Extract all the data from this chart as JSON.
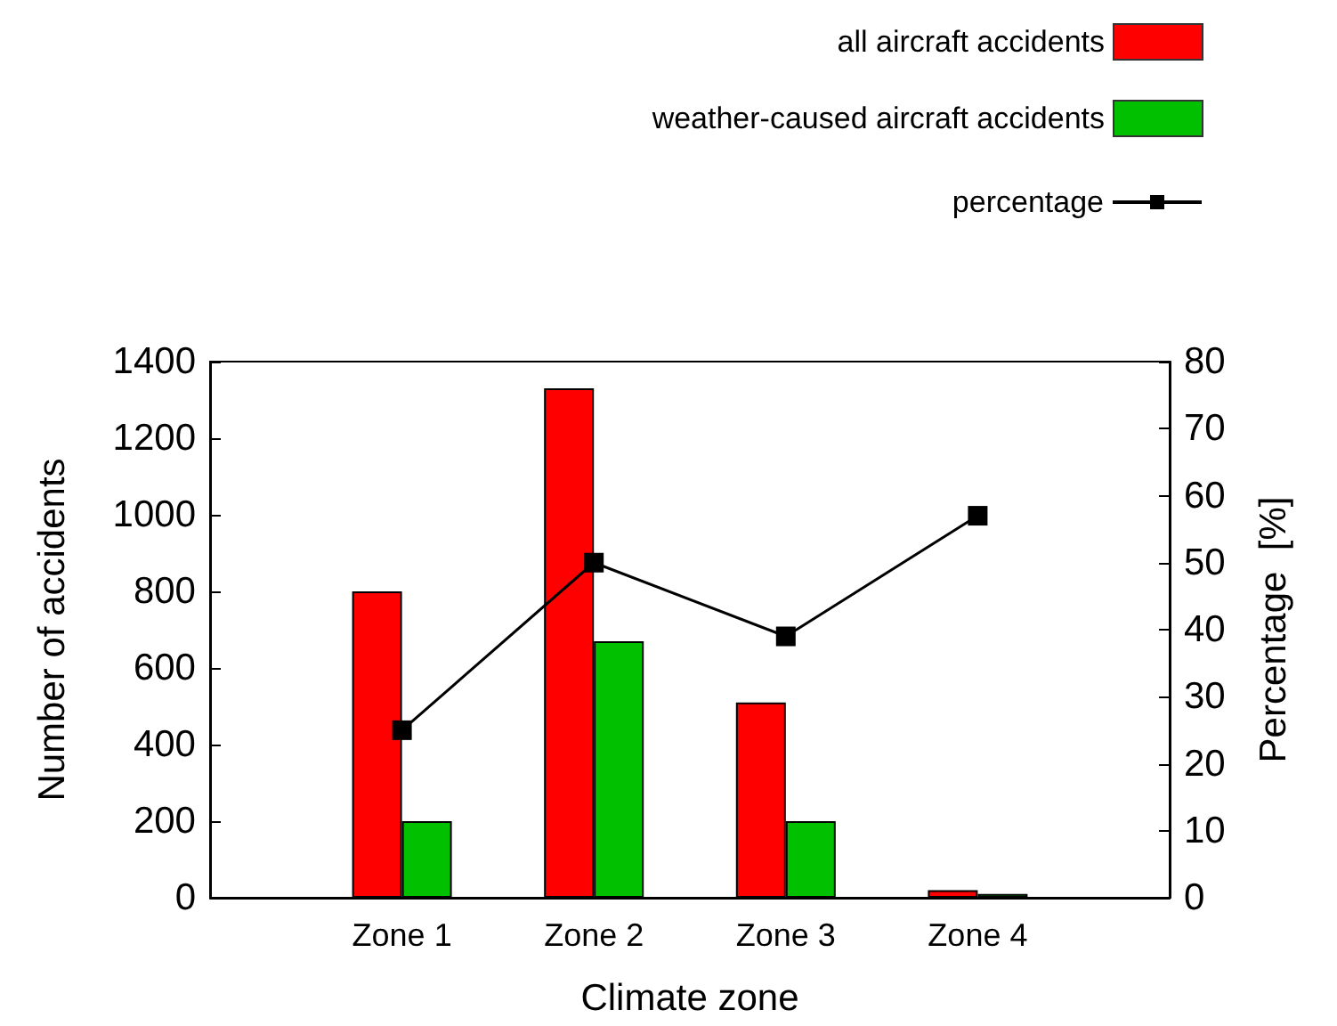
{
  "chart_data": {
    "type": "bar",
    "xlabel": "Climate zone",
    "ylabel": "Number of accidents",
    "y2label": "Percentage  [%]",
    "categories": [
      null,
      "Zone 1",
      "Zone 2",
      "Zone 3",
      "Zone 4",
      null
    ],
    "series": [
      {
        "name": "all aircraft accidents",
        "color": "#ff0000",
        "values": [
          null,
          800,
          1330,
          510,
          20,
          null
        ]
      },
      {
        "name": "weather-caused aircraft accidents",
        "color": "#00c000",
        "values": [
          null,
          200,
          670,
          200,
          10,
          null
        ]
      },
      {
        "name": "percentage",
        "type": "line",
        "axis": "y2",
        "color": "#000000",
        "marker": "square",
        "values": [
          null,
          25,
          50,
          39,
          57,
          null
        ]
      }
    ],
    "ylim": [
      0,
      1400
    ],
    "yticks": [
      0,
      200,
      400,
      600,
      800,
      1000,
      1200,
      1400
    ],
    "y2lim": [
      0,
      80
    ],
    "y2ticks": [
      0,
      10,
      20,
      30,
      40,
      50,
      60,
      70,
      80
    ],
    "grid": false,
    "legend": "top right"
  }
}
